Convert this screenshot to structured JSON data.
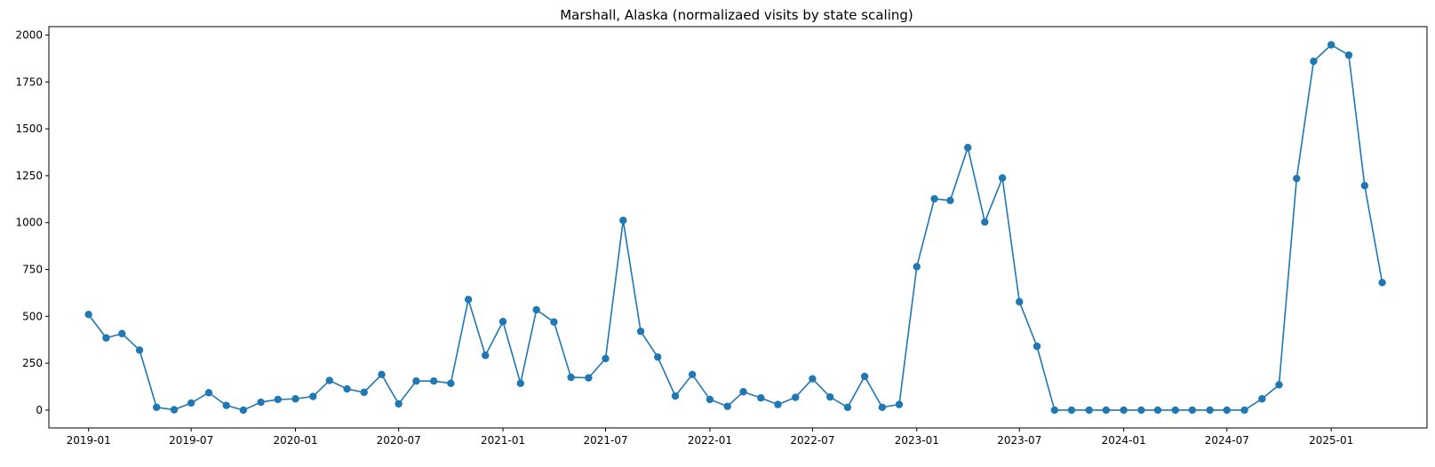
{
  "chart_data": {
    "type": "line",
    "title": "Marshall, Alaska (normalizaed visits by state scaling)",
    "xlabel": "",
    "ylabel": "",
    "grid": false,
    "markers": true,
    "color": "#1f77b4",
    "ylim": [
      -95,
      2045
    ],
    "xlim": [
      "2018-10-23",
      "2025-06-19"
    ],
    "x_ticks": [
      "2019-01",
      "2019-07",
      "2020-01",
      "2020-07",
      "2021-01",
      "2021-07",
      "2022-01",
      "2022-07",
      "2023-01",
      "2023-07",
      "2024-01",
      "2024-07",
      "2025-01"
    ],
    "y_ticks": [
      0,
      250,
      500,
      750,
      1000,
      1250,
      1500,
      1750,
      2000
    ],
    "x": [
      "2019-01",
      "2019-02",
      "2019-03",
      "2019-04",
      "2019-05",
      "2019-06",
      "2019-07",
      "2019-08",
      "2019-09",
      "2019-10",
      "2019-11",
      "2019-12",
      "2020-01",
      "2020-02",
      "2020-03",
      "2020-04",
      "2020-05",
      "2020-06",
      "2020-07",
      "2020-08",
      "2020-09",
      "2020-10",
      "2020-11",
      "2020-12",
      "2021-01",
      "2021-02",
      "2021-03",
      "2021-04",
      "2021-05",
      "2021-06",
      "2021-07",
      "2021-08",
      "2021-09",
      "2021-10",
      "2021-11",
      "2021-12",
      "2022-01",
      "2022-02",
      "2022-03",
      "2022-04",
      "2022-05",
      "2022-06",
      "2022-07",
      "2022-08",
      "2022-09",
      "2022-10",
      "2022-11",
      "2022-12",
      "2023-01",
      "2023-02",
      "2023-03",
      "2023-04",
      "2023-05",
      "2023-06",
      "2023-07",
      "2023-08",
      "2023-09",
      "2023-10",
      "2023-11",
      "2023-12",
      "2024-01",
      "2024-02",
      "2024-03",
      "2024-04",
      "2024-05",
      "2024-06",
      "2024-07",
      "2024-08",
      "2024-09",
      "2024-10",
      "2024-11",
      "2024-12",
      "2025-01",
      "2025-02",
      "2025-03",
      "2025-04"
    ],
    "series": [
      {
        "values": [
          510,
          385,
          408,
          320,
          15,
          2,
          38,
          93,
          25,
          0,
          42,
          57,
          60,
          73,
          158,
          113,
          95,
          190,
          33,
          155,
          155,
          143,
          590,
          292,
          472,
          143,
          535,
          470,
          175,
          172,
          275,
          1012,
          420,
          283,
          75,
          190,
          57,
          20,
          98,
          65,
          30,
          68,
          167,
          70,
          15,
          180,
          15,
          30,
          765,
          1127,
          1118,
          1400,
          1003,
          1238,
          578,
          340,
          0,
          0,
          0,
          0,
          0,
          0,
          0,
          0,
          0,
          0,
          0,
          0,
          60,
          135,
          1235,
          1860,
          1948,
          1893,
          1197,
          680
        ]
      }
    ]
  }
}
